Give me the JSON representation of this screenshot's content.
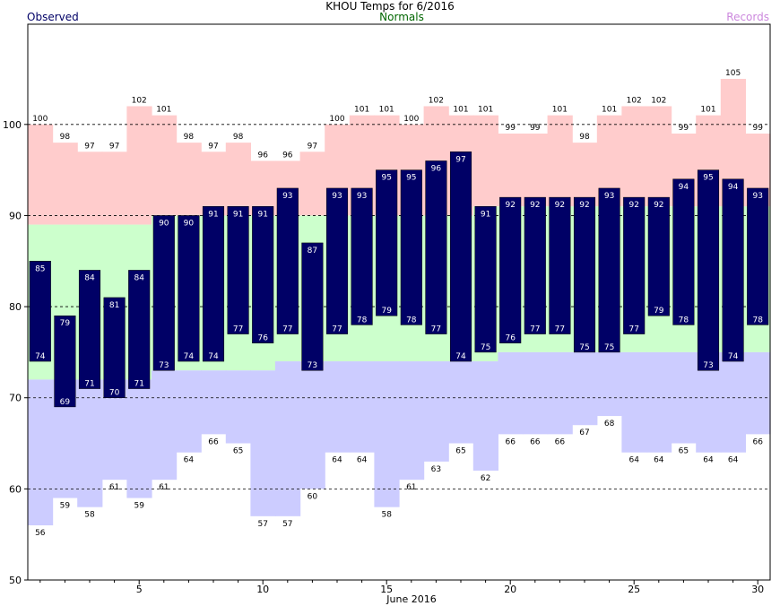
{
  "title": "KHOU Temps for 6/2016",
  "legend": {
    "observed": "Observed",
    "normals": "Normals",
    "records": "Records"
  },
  "colors": {
    "observed": "#000066",
    "normals": "#ccffcc",
    "record_high": "#ffcccc",
    "record_low": "#ccccff",
    "grid": "#000000"
  },
  "chart_data": {
    "type": "bar",
    "title": "KHOU Temps for 6/2016",
    "xlabel": "June 2016",
    "ylabel": "",
    "x": [
      1,
      2,
      3,
      4,
      5,
      6,
      7,
      8,
      9,
      10,
      11,
      12,
      13,
      14,
      15,
      16,
      17,
      18,
      19,
      20,
      21,
      22,
      23,
      24,
      25,
      26,
      27,
      28,
      29,
      30
    ],
    "xticks": [
      5,
      10,
      15,
      20,
      25,
      30
    ],
    "ylim": [
      50,
      111
    ],
    "yticks": [
      50,
      60,
      70,
      80,
      90,
      100
    ],
    "grid": "dashed horizontal at 60, 70, 80, 90, 100",
    "legend_placement": "top",
    "series": [
      {
        "name": "Observed",
        "kind": "high",
        "values": [
          85,
          79,
          84,
          81,
          84,
          90,
          90,
          91,
          91,
          91,
          93,
          87,
          93,
          93,
          95,
          95,
          96,
          97,
          91,
          92,
          92,
          92,
          92,
          93,
          92,
          92,
          94,
          95,
          94,
          93
        ]
      },
      {
        "name": "Observed",
        "kind": "low",
        "values": [
          74,
          69,
          71,
          70,
          71,
          73,
          74,
          74,
          77,
          76,
          77,
          73,
          77,
          78,
          79,
          78,
          77,
          74,
          75,
          76,
          77,
          77,
          75,
          75,
          77,
          79,
          78,
          73,
          74,
          78
        ]
      },
      {
        "name": "Normals",
        "kind": "high",
        "values": [
          89,
          89,
          89,
          89,
          89,
          90,
          90,
          90,
          90,
          90,
          90,
          90,
          90,
          90,
          90,
          90,
          90,
          90,
          91,
          91,
          91,
          91,
          91,
          91,
          91,
          91,
          91,
          91,
          91,
          91
        ]
      },
      {
        "name": "Normals",
        "kind": "low",
        "values": [
          72,
          72,
          72,
          72,
          72,
          73,
          73,
          73,
          73,
          73,
          74,
          74,
          74,
          74,
          74,
          74,
          74,
          74,
          74,
          75,
          75,
          75,
          75,
          75,
          75,
          75,
          75,
          75,
          75,
          75
        ]
      },
      {
        "name": "Records",
        "kind": "high",
        "values": [
          100,
          98,
          97,
          97,
          102,
          101,
          98,
          97,
          98,
          96,
          96,
          97,
          100,
          101,
          101,
          100,
          102,
          101,
          101,
          99,
          99,
          101,
          98,
          101,
          102,
          102,
          99,
          101,
          105,
          99
        ]
      },
      {
        "name": "Records",
        "kind": "low",
        "values": [
          56,
          59,
          58,
          61,
          59,
          61,
          64,
          66,
          65,
          57,
          57,
          60,
          64,
          64,
          58,
          61,
          63,
          65,
          62,
          66,
          66,
          66,
          67,
          68,
          64,
          64,
          65,
          64,
          64,
          66
        ]
      }
    ]
  }
}
